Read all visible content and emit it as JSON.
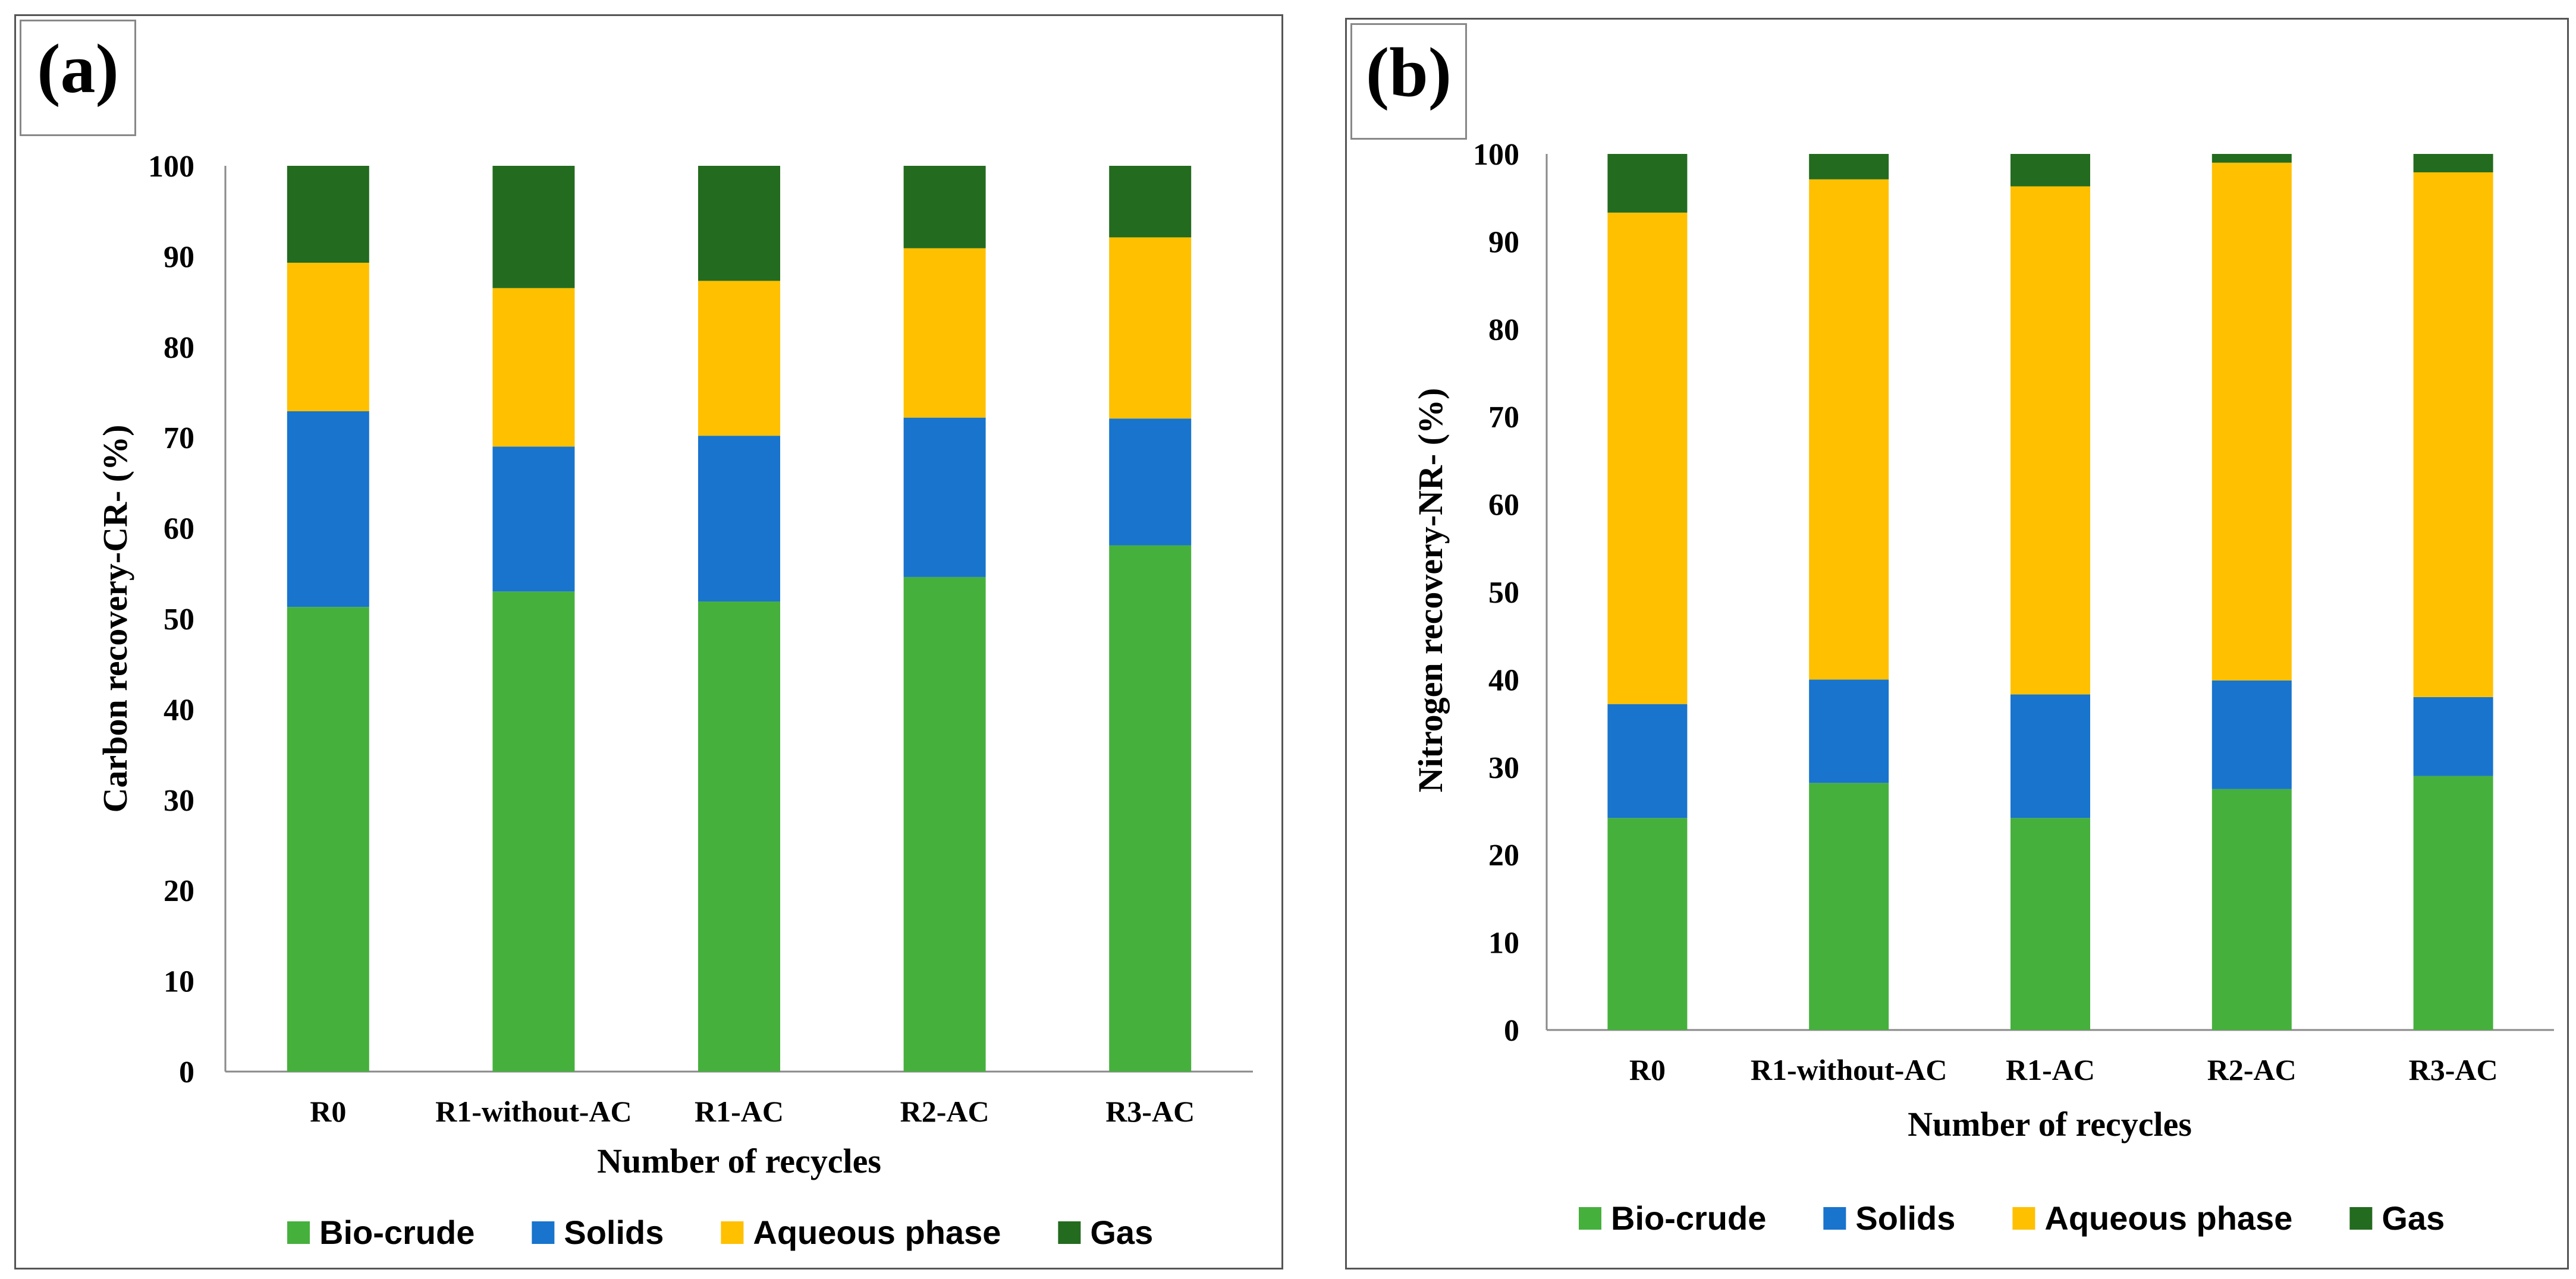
{
  "chart_data": [
    {
      "type": "bar",
      "stacked": true,
      "panel_label": "(a)",
      "title": "",
      "xlabel": "Number of recycles",
      "ylabel": "Carbon recovery-CR- (%)",
      "ylim": [
        0,
        100
      ],
      "yticks": [
        "0",
        "10",
        "20",
        "30",
        "40",
        "50",
        "60",
        "70",
        "80",
        "90",
        "100"
      ],
      "categories": [
        "R0",
        "R1-without-AC",
        "R1-AC",
        "R2-AC",
        "R3-AC"
      ],
      "series": [
        {
          "name": "Bio-crude",
          "color": "#46B03D",
          "values": [
            51.3,
            53.0,
            51.9,
            54.6,
            58.1
          ]
        },
        {
          "name": "Solids",
          "color": "#1874CD",
          "values": [
            21.6,
            16.0,
            18.3,
            17.6,
            14.0
          ]
        },
        {
          "name": "Aqueous phase",
          "color": "#FFC000",
          "values": [
            16.4,
            17.5,
            17.1,
            18.7,
            20.0
          ]
        },
        {
          "name": "Gas",
          "color": "#236B1F",
          "values": [
            10.7,
            13.5,
            12.7,
            9.1,
            7.9
          ]
        }
      ],
      "legend_position": "bottom"
    },
    {
      "type": "bar",
      "stacked": true,
      "panel_label": "(b)",
      "title": "",
      "xlabel": "Number of recycles",
      "ylabel": "Nitrogen recovery-NR- (%)",
      "ylim": [
        0,
        100
      ],
      "yticks": [
        "0",
        "10",
        "20",
        "30",
        "40",
        "50",
        "60",
        "70",
        "80",
        "90",
        "100"
      ],
      "categories": [
        "R0",
        "R1-without-AC",
        "R1-AC",
        "R2-AC",
        "R3-AC"
      ],
      "series": [
        {
          "name": "Bio-crude",
          "color": "#46B03D",
          "values": [
            24.2,
            28.2,
            24.2,
            27.5,
            29.0
          ]
        },
        {
          "name": "Solids",
          "color": "#1874CD",
          "values": [
            13.0,
            11.8,
            14.1,
            12.4,
            9.0
          ]
        },
        {
          "name": "Aqueous phase",
          "color": "#FFC000",
          "values": [
            56.1,
            57.1,
            58.0,
            59.1,
            59.9
          ]
        },
        {
          "name": "Gas",
          "color": "#236B1F",
          "values": [
            6.7,
            2.9,
            3.7,
            1.0,
            2.1
          ]
        }
      ],
      "legend_position": "bottom"
    }
  ]
}
